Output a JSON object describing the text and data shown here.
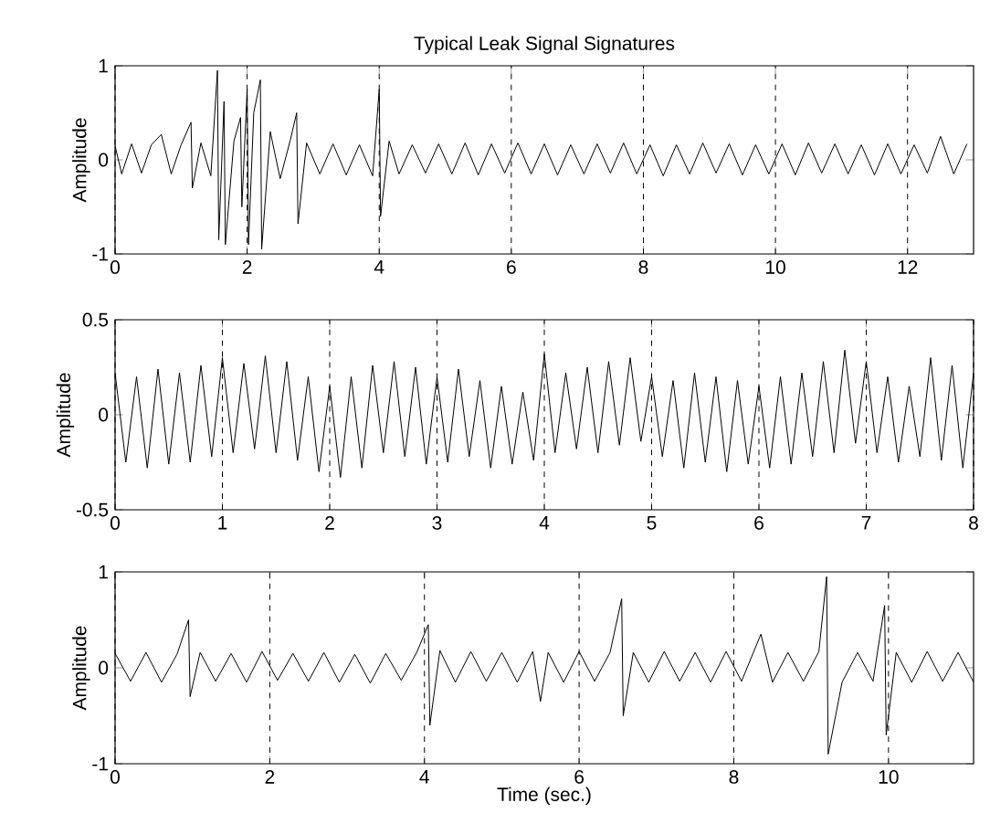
{
  "chart_data": [
    {
      "type": "line",
      "title": "Typical Leak Signal Signatures",
      "ylabel": "Amplitude",
      "xlim": [
        0,
        13
      ],
      "ylim": [
        -1,
        1
      ],
      "xticks": [
        0,
        2,
        4,
        6,
        8,
        10,
        12
      ],
      "yticks": [
        -1,
        0,
        1
      ],
      "grid": "x",
      "marker": "none",
      "line_style": "solid",
      "series": [
        {
          "color": "#000000",
          "x": [
            0,
            0.1,
            0.25,
            0.4,
            0.55,
            0.7,
            0.85,
            1.0,
            1.15,
            1.17,
            1.3,
            1.45,
            1.55,
            1.57,
            1.65,
            1.67,
            1.8,
            1.9,
            1.92,
            2.0,
            2.02,
            2.1,
            2.2,
            2.22,
            2.35,
            2.5,
            2.65,
            2.75,
            2.77,
            2.9,
            3.1,
            3.3,
            3.5,
            3.7,
            3.9,
            4.0,
            4.02,
            4.15,
            4.3,
            4.5,
            4.7,
            4.9,
            5.1,
            5.3,
            5.5,
            5.7,
            5.9,
            6.1,
            6.3,
            6.5,
            6.7,
            6.9,
            7.1,
            7.3,
            7.5,
            7.7,
            7.9,
            8.1,
            8.3,
            8.5,
            8.7,
            8.9,
            9.1,
            9.3,
            9.5,
            9.7,
            9.9,
            10.1,
            10.3,
            10.5,
            10.7,
            10.9,
            11.1,
            11.3,
            11.5,
            11.7,
            11.9,
            12.1,
            12.3,
            12.5,
            12.7,
            12.9
          ],
          "values": [
            0.15,
            -0.15,
            0.17,
            -0.14,
            0.16,
            0.27,
            -0.15,
            0.16,
            0.4,
            -0.3,
            0.18,
            -0.17,
            0.95,
            -0.85,
            0.62,
            -0.9,
            0.2,
            0.45,
            -0.5,
            0.75,
            -0.9,
            0.5,
            0.85,
            -0.95,
            0.3,
            -0.2,
            0.2,
            0.5,
            -0.68,
            0.18,
            -0.15,
            0.17,
            -0.16,
            0.16,
            -0.17,
            0.75,
            -0.6,
            0.2,
            -0.15,
            0.16,
            -0.14,
            0.17,
            -0.15,
            0.18,
            -0.16,
            0.17,
            -0.14,
            0.18,
            -0.15,
            0.17,
            -0.16,
            0.16,
            -0.15,
            0.17,
            -0.14,
            0.18,
            -0.15,
            0.16,
            -0.17,
            0.16,
            -0.15,
            0.18,
            -0.14,
            0.17,
            -0.16,
            0.16,
            -0.15,
            0.17,
            -0.16,
            0.18,
            -0.14,
            0.17,
            -0.15,
            0.16,
            -0.16,
            0.17,
            -0.15,
            0.16,
            -0.14,
            0.25,
            -0.15,
            0.17
          ]
        }
      ]
    },
    {
      "type": "line",
      "ylabel": "Amplitude",
      "xlim": [
        0,
        8
      ],
      "ylim": [
        -0.5,
        0.5
      ],
      "xticks": [
        0,
        1,
        2,
        3,
        4,
        5,
        6,
        7,
        8
      ],
      "yticks": [
        -0.5,
        0,
        0.5
      ],
      "grid": "x",
      "marker": "none",
      "line_style": "solid",
      "series": [
        {
          "color": "#000000",
          "x": [
            0,
            0.1,
            0.2,
            0.3,
            0.4,
            0.5,
            0.6,
            0.7,
            0.8,
            0.9,
            1.0,
            1.1,
            1.2,
            1.3,
            1.4,
            1.5,
            1.6,
            1.7,
            1.8,
            1.9,
            2.0,
            2.1,
            2.2,
            2.3,
            2.4,
            2.5,
            2.6,
            2.7,
            2.8,
            2.9,
            3.0,
            3.1,
            3.2,
            3.3,
            3.4,
            3.5,
            3.6,
            3.7,
            3.8,
            3.9,
            4.0,
            4.1,
            4.2,
            4.3,
            4.4,
            4.5,
            4.6,
            4.7,
            4.8,
            4.9,
            5.0,
            5.1,
            5.2,
            5.3,
            5.4,
            5.5,
            5.6,
            5.7,
            5.8,
            5.9,
            6.0,
            6.1,
            6.2,
            6.3,
            6.4,
            6.5,
            6.6,
            6.7,
            6.8,
            6.9,
            7.0,
            7.1,
            7.2,
            7.3,
            7.4,
            7.5,
            7.6,
            7.7,
            7.8,
            7.9,
            8.0
          ],
          "values": [
            0.22,
            -0.25,
            0.2,
            -0.28,
            0.24,
            -0.26,
            0.22,
            -0.25,
            0.26,
            -0.22,
            0.3,
            -0.2,
            0.27,
            -0.18,
            0.31,
            -0.2,
            0.28,
            -0.24,
            0.2,
            -0.3,
            0.15,
            -0.33,
            0.2,
            -0.28,
            0.26,
            -0.2,
            0.28,
            -0.22,
            0.25,
            -0.26,
            0.2,
            -0.25,
            0.24,
            -0.22,
            0.18,
            -0.28,
            0.15,
            -0.26,
            0.12,
            -0.24,
            0.32,
            -0.2,
            0.22,
            -0.18,
            0.25,
            -0.2,
            0.28,
            -0.16,
            0.3,
            -0.14,
            0.2,
            -0.22,
            0.18,
            -0.28,
            0.22,
            -0.25,
            0.2,
            -0.3,
            0.18,
            -0.26,
            0.15,
            -0.28,
            0.2,
            -0.26,
            0.22,
            -0.22,
            0.28,
            -0.2,
            0.34,
            -0.15,
            0.28,
            -0.2,
            0.2,
            -0.25,
            0.15,
            -0.22,
            0.3,
            -0.24,
            0.26,
            -0.28,
            0.22
          ]
        }
      ]
    },
    {
      "type": "line",
      "ylabel": "Amplitude",
      "xlabel": "Time (sec.)",
      "xlim": [
        0,
        11.1
      ],
      "ylim": [
        -1,
        1
      ],
      "xticks": [
        0,
        2,
        4,
        6,
        8,
        10
      ],
      "yticks": [
        -1,
        0,
        1
      ],
      "grid": "x",
      "marker": "none",
      "line_style": "solid",
      "series": [
        {
          "color": "#000000",
          "x": [
            0,
            0.2,
            0.4,
            0.6,
            0.8,
            0.95,
            0.97,
            1.1,
            1.3,
            1.5,
            1.7,
            1.9,
            2.1,
            2.3,
            2.5,
            2.7,
            2.9,
            3.1,
            3.3,
            3.5,
            3.7,
            3.9,
            4.05,
            4.07,
            4.2,
            4.4,
            4.6,
            4.8,
            5.0,
            5.2,
            5.4,
            5.5,
            5.6,
            5.8,
            6.0,
            6.2,
            6.4,
            6.55,
            6.57,
            6.7,
            6.9,
            7.1,
            7.3,
            7.5,
            7.7,
            7.9,
            8.1,
            8.35,
            8.5,
            8.7,
            8.9,
            9.1,
            9.2,
            9.22,
            9.4,
            9.6,
            9.8,
            9.95,
            9.97,
            10.1,
            10.3,
            10.5,
            10.7,
            10.9,
            11.1
          ],
          "values": [
            0.15,
            -0.14,
            0.16,
            -0.15,
            0.14,
            0.5,
            -0.3,
            0.16,
            -0.14,
            0.15,
            -0.15,
            0.17,
            -0.13,
            0.15,
            -0.14,
            0.16,
            -0.15,
            0.14,
            -0.16,
            0.15,
            -0.13,
            0.16,
            0.45,
            -0.6,
            0.18,
            -0.15,
            0.17,
            -0.14,
            0.16,
            -0.15,
            0.17,
            -0.35,
            0.16,
            -0.15,
            0.17,
            -0.14,
            0.16,
            0.72,
            -0.5,
            0.16,
            -0.15,
            0.17,
            -0.14,
            0.16,
            -0.15,
            0.17,
            -0.14,
            0.35,
            -0.15,
            0.16,
            -0.14,
            0.17,
            0.95,
            -0.9,
            -0.15,
            0.16,
            -0.14,
            0.65,
            -0.7,
            0.16,
            -0.15,
            0.17,
            -0.14,
            0.16,
            -0.15
          ]
        }
      ]
    }
  ]
}
